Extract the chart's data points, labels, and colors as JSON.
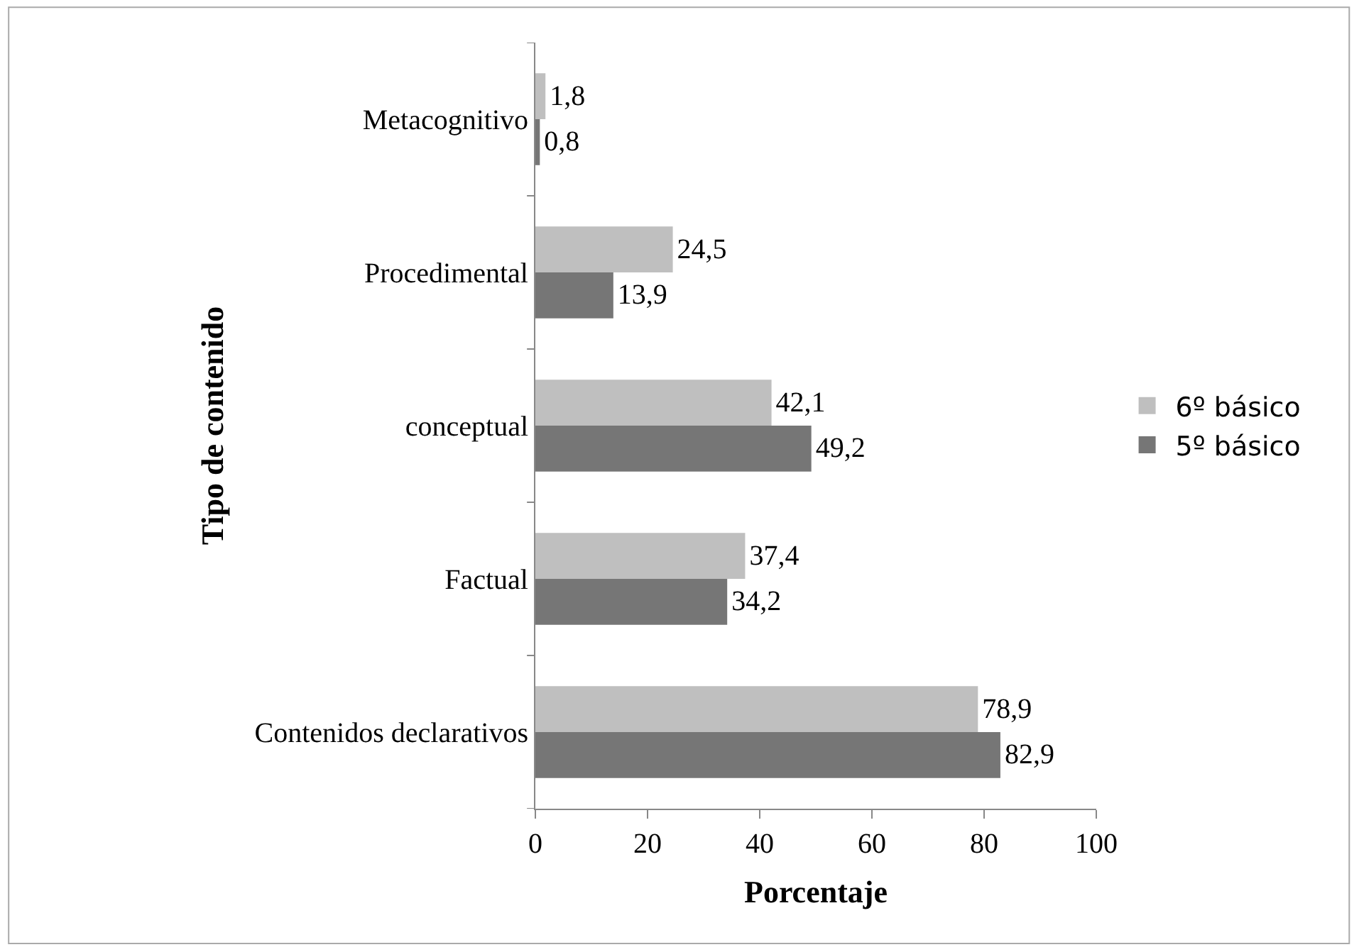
{
  "chart_data": {
    "type": "bar",
    "orientation": "horizontal",
    "xlabel": "Porcentaje",
    "ylabel": "Tipo de contenido",
    "categories": [
      "Metacognitivo",
      "Procedimental",
      "conceptual",
      "Factual",
      "Contenidos declarativos"
    ],
    "series": [
      {
        "name": "6º básico",
        "color": "#bfbfbf",
        "values": [
          1.8,
          24.5,
          42.1,
          37.4,
          78.9
        ],
        "value_labels": [
          "1,8",
          "24,5",
          "42,1",
          "37,4",
          "78,9"
        ]
      },
      {
        "name": "5º básico",
        "color": "#767676",
        "values": [
          0.8,
          13.9,
          49.2,
          34.2,
          82.9
        ],
        "value_labels": [
          "0,8",
          "13,9",
          "49,2",
          "34,2",
          "82,9"
        ]
      }
    ],
    "xlim": [
      0,
      100
    ],
    "xticks": [
      0,
      20,
      40,
      60,
      80,
      100
    ],
    "legend": "right"
  }
}
